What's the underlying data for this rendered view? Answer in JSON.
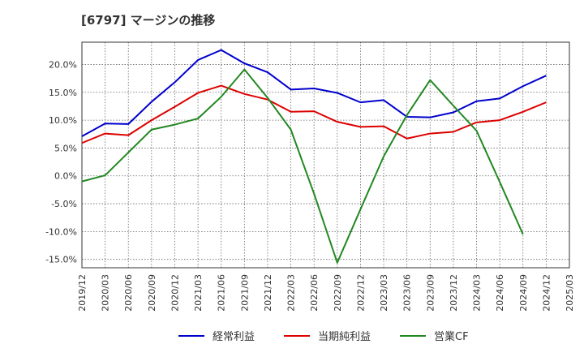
{
  "chart_data": {
    "type": "line",
    "title": "[6797]  マージンの推移",
    "x": [
      "2019/12",
      "2020/03",
      "2020/06",
      "2020/09",
      "2020/12",
      "2021/03",
      "2021/06",
      "2021/09",
      "2021/12",
      "2022/03",
      "2022/06",
      "2022/09",
      "2022/12",
      "2023/03",
      "2023/06",
      "2023/09",
      "2023/12",
      "2024/03",
      "2024/06",
      "2024/09",
      "2024/12",
      "2025/03"
    ],
    "yticks": [
      20.0,
      15.0,
      10.0,
      5.0,
      0.0,
      -5.0,
      -10.0,
      -15.0
    ],
    "ytick_labels": [
      "20.0%",
      "15.0%",
      "10.0%",
      "5.0%",
      "0.0%",
      "-5.0%",
      "-10.0%",
      "-15.0%"
    ],
    "ylim": [
      -16.5,
      24.0
    ],
    "grid": true,
    "legend_position": "bottom",
    "series": [
      {
        "name": "経常利益",
        "color": "#0000cc",
        "values": [
          7.1,
          9.4,
          9.3,
          13.3,
          16.8,
          20.8,
          22.6,
          20.2,
          18.6,
          15.5,
          15.7,
          14.9,
          13.2,
          13.6,
          10.6,
          10.5,
          11.4,
          13.4,
          13.9,
          16.1,
          18.0,
          null
        ]
      },
      {
        "name": "当期純利益",
        "color": "#dd0000",
        "values": [
          5.9,
          7.6,
          7.3,
          10.0,
          12.4,
          14.9,
          16.2,
          14.7,
          13.7,
          11.5,
          11.6,
          9.7,
          8.8,
          8.9,
          6.7,
          7.6,
          7.9,
          9.6,
          10.0,
          11.5,
          13.2,
          null
        ]
      },
      {
        "name": "営業CF",
        "color": "#228822",
        "values": [
          -1.0,
          0.1,
          4.2,
          8.3,
          9.2,
          10.3,
          14.2,
          19.1,
          14.0,
          8.3,
          -3.2,
          -15.6,
          -6.0,
          3.5,
          10.9,
          17.2,
          12.6,
          8.1,
          -1.1,
          -10.5,
          null,
          null
        ]
      }
    ]
  }
}
